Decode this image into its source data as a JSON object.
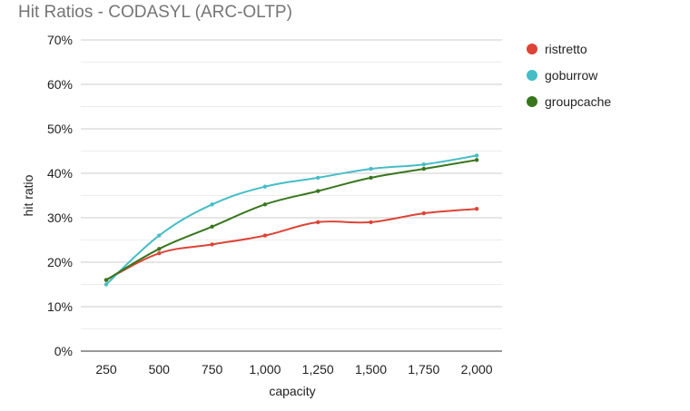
{
  "chart_data": {
    "type": "line",
    "title": "Hit Ratios - CODASYL (ARC-OLTP)",
    "xlabel": "capacity",
    "ylabel": "hit ratio",
    "x": [
      250,
      500,
      750,
      1000,
      1250,
      1500,
      1750,
      2000
    ],
    "x_tick_labels": [
      "250",
      "500",
      "750",
      "1,000",
      "1,250",
      "1,500",
      "1,750",
      "2,000"
    ],
    "ylim": [
      0,
      70
    ],
    "y_ticks": [
      0,
      10,
      20,
      30,
      40,
      50,
      60,
      70
    ],
    "y_tick_labels": [
      "0%",
      "10%",
      "20%",
      "30%",
      "40%",
      "50%",
      "60%",
      "70%"
    ],
    "grid": true,
    "legend_position": "right",
    "series": [
      {
        "name": "ristretto",
        "color": "#dc4437",
        "values": [
          16,
          22,
          24,
          26,
          29,
          29,
          31,
          32
        ]
      },
      {
        "name": "goburrow",
        "color": "#46bdc6",
        "values": [
          15,
          26,
          33,
          37,
          39,
          41,
          42,
          44
        ]
      },
      {
        "name": "groupcache",
        "color": "#38761d",
        "values": [
          16,
          23,
          28,
          33,
          36,
          39,
          41,
          43
        ]
      }
    ]
  }
}
